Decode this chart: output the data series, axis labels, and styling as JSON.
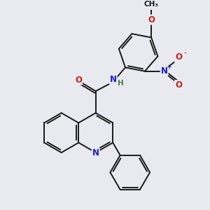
{
  "bg_color": "#e8eaf0",
  "bond_color": "#1a1a1a",
  "bond_lw": 1.4,
  "atom_colors": {
    "N": "#1a1acc",
    "O": "#cc1a1a",
    "C": "#1a1a1a"
  }
}
